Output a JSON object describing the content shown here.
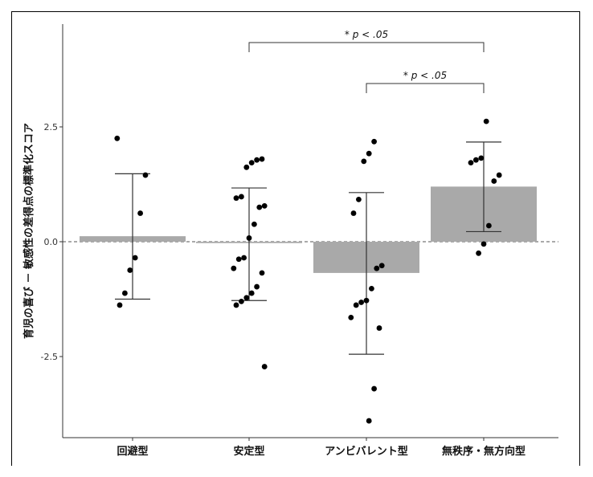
{
  "chart_data": {
    "type": "bar",
    "categories": [
      "回避型",
      "安定型",
      "アンビバレント型",
      "無秩序・無方向型"
    ],
    "ylabel": "育児の喜び － 敏感性の差得点の標準化スコア",
    "ylim": [
      -4.4,
      4.6
    ],
    "yticks": [
      -2.5,
      0.0,
      2.5
    ],
    "ytick_labels": [
      "-2.5",
      "0.0",
      "2.5"
    ],
    "reference_line": 0,
    "colors": {
      "bar": "#a9a9a9",
      "point": "#000000",
      "errorbar": "#333333",
      "axis": "#333333"
    },
    "series": [
      {
        "values": [
          0.12,
          -0.03,
          -0.68,
          1.2
        ],
        "error_low": [
          -1.25,
          -1.28,
          -2.45,
          0.22
        ],
        "error_high": [
          1.48,
          1.17,
          1.07,
          2.17
        ]
      }
    ],
    "points": [
      [
        2.25,
        1.45,
        0.62,
        -0.35,
        -0.62,
        -1.12,
        -1.38
      ],
      [
        1.8,
        1.78,
        1.72,
        1.62,
        0.98,
        0.95,
        0.78,
        0.75,
        0.38,
        0.08,
        -0.35,
        -0.38,
        -0.58,
        -0.68,
        -0.98,
        -1.12,
        -1.22,
        -1.3,
        -1.38,
        -2.72
      ],
      [
        2.18,
        1.92,
        1.75,
        0.92,
        0.62,
        -0.52,
        -0.58,
        -1.02,
        -1.28,
        -1.32,
        -1.38,
        -1.65,
        -1.88,
        -3.2,
        -3.9
      ],
      [
        2.62,
        1.82,
        1.78,
        1.72,
        1.45,
        1.32,
        0.35,
        -0.05,
        -0.25
      ]
    ],
    "significance": [
      {
        "from": 1,
        "to": 3,
        "label": "* p < .05"
      },
      {
        "from": 2,
        "to": 3,
        "label": "* p < .05"
      }
    ]
  }
}
